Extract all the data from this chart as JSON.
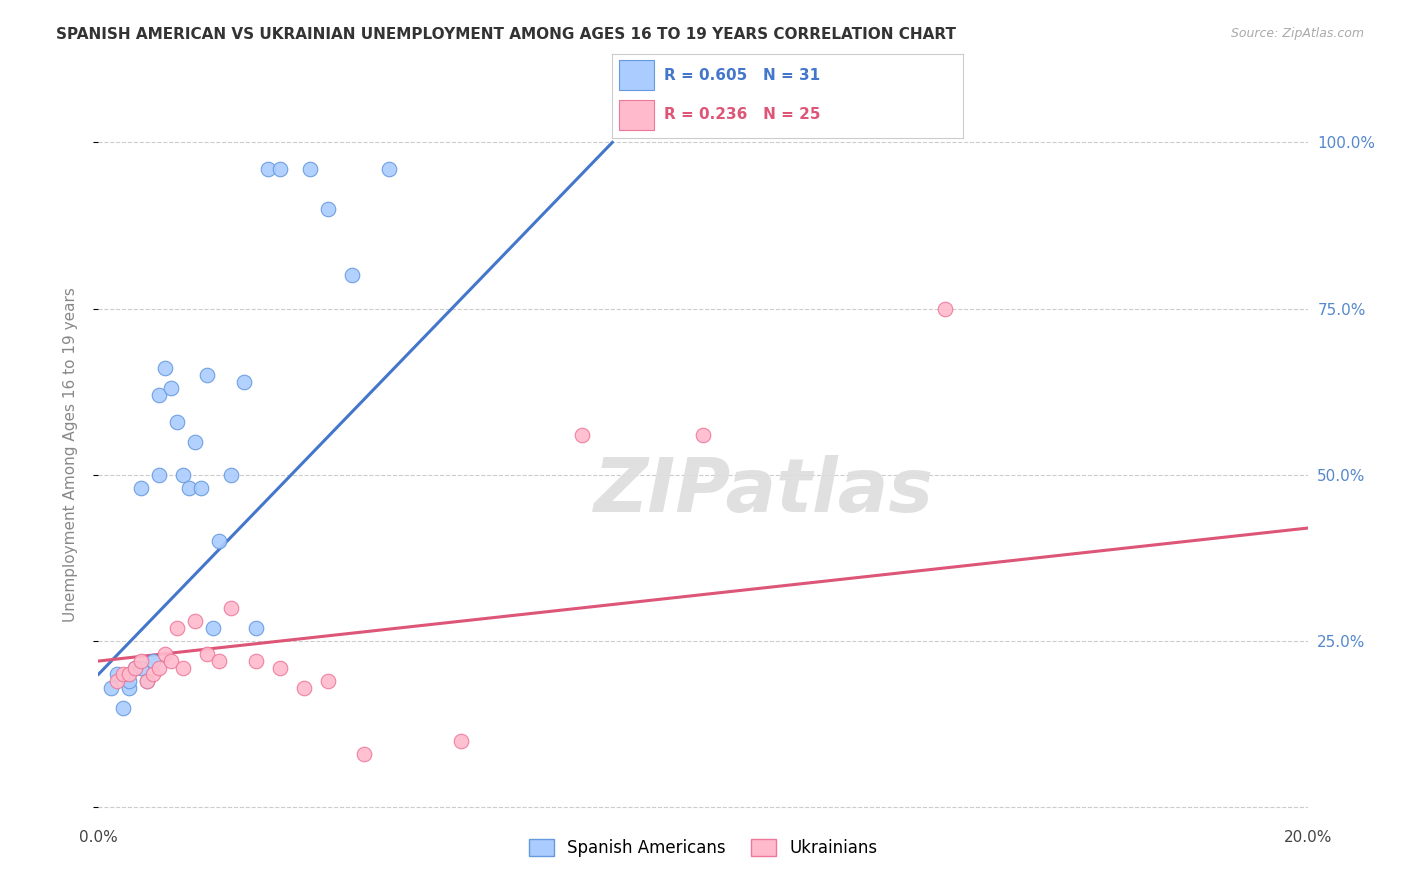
{
  "title": "SPANISH AMERICAN VS UKRAINIAN UNEMPLOYMENT AMONG AGES 16 TO 19 YEARS CORRELATION CHART",
  "source": "Source: ZipAtlas.com",
  "ylabel": "Unemployment Among Ages 16 to 19 years",
  "xlim": [
    0.0,
    0.2
  ],
  "ylim": [
    -0.02,
    1.08
  ],
  "ytick_values": [
    0.0,
    0.25,
    0.5,
    0.75,
    1.0
  ],
  "ytick_labels_right": [
    "",
    "25.0%",
    "50.0%",
    "75.0%",
    "100.0%"
  ],
  "legend_blue_text": "R = 0.605   N = 31",
  "legend_pink_text": "R = 0.236   N = 25",
  "legend_label_blue": "Spanish Americans",
  "legend_label_pink": "Ukrainians",
  "blue_scatter_x": [
    0.002,
    0.003,
    0.004,
    0.005,
    0.005,
    0.006,
    0.007,
    0.007,
    0.008,
    0.009,
    0.01,
    0.01,
    0.011,
    0.012,
    0.013,
    0.014,
    0.015,
    0.016,
    0.017,
    0.018,
    0.019,
    0.02,
    0.022,
    0.024,
    0.026,
    0.028,
    0.03,
    0.035,
    0.038,
    0.042,
    0.048
  ],
  "blue_scatter_y": [
    0.18,
    0.2,
    0.15,
    0.18,
    0.19,
    0.21,
    0.21,
    0.48,
    0.19,
    0.22,
    0.5,
    0.62,
    0.66,
    0.63,
    0.58,
    0.5,
    0.48,
    0.55,
    0.48,
    0.65,
    0.27,
    0.4,
    0.5,
    0.64,
    0.27,
    0.96,
    0.96,
    0.96,
    0.9,
    0.8,
    0.96
  ],
  "pink_scatter_x": [
    0.003,
    0.004,
    0.005,
    0.006,
    0.007,
    0.008,
    0.009,
    0.01,
    0.011,
    0.012,
    0.013,
    0.014,
    0.016,
    0.018,
    0.02,
    0.022,
    0.026,
    0.03,
    0.034,
    0.038,
    0.044,
    0.06,
    0.08,
    0.1,
    0.14
  ],
  "pink_scatter_y": [
    0.19,
    0.2,
    0.2,
    0.21,
    0.22,
    0.19,
    0.2,
    0.21,
    0.23,
    0.22,
    0.27,
    0.21,
    0.28,
    0.23,
    0.22,
    0.3,
    0.22,
    0.21,
    0.18,
    0.19,
    0.08,
    0.1,
    0.56,
    0.56,
    0.75
  ],
  "blue_line_x": [
    0.0,
    0.085
  ],
  "blue_line_y": [
    0.2,
    1.0
  ],
  "pink_line_x": [
    0.0,
    0.2
  ],
  "pink_line_y": [
    0.22,
    0.42
  ],
  "blue_line_color": "#4477cc",
  "pink_line_color": "#dd5577",
  "blue_dot_facecolor": "#aaccff",
  "blue_dot_edgecolor": "#6699dd",
  "pink_dot_facecolor": "#ffbbcc",
  "pink_dot_edgecolor": "#ee7799",
  "watermark": "ZIPatlas",
  "background_color": "#ffffff",
  "grid_color": "#cccccc",
  "title_color": "#333333",
  "source_color": "#aaaaaa",
  "axis_label_color": "#888888",
  "tick_color": "#5588cc"
}
